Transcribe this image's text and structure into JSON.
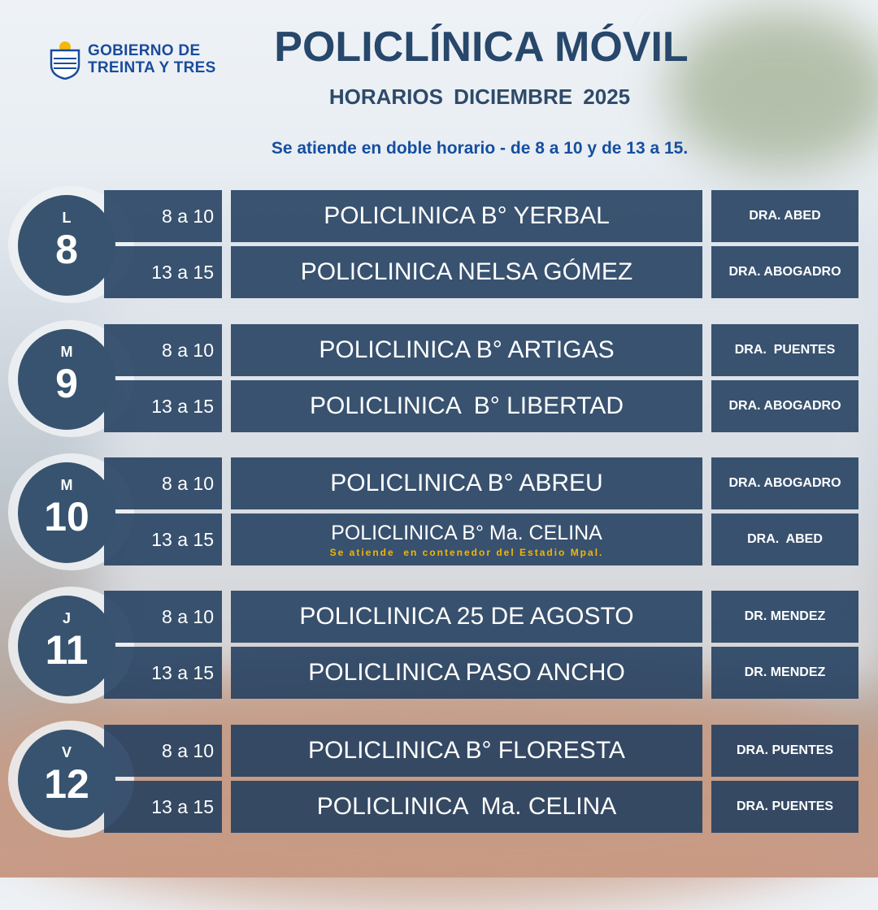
{
  "logo": {
    "line1": "GOBIERNO DE",
    "line2": "TREINTA Y TRES"
  },
  "title": "POLICLÍNICA MÓVIL",
  "subtitle": "HORARIOS  DICIEMBRE 2025",
  "note": "Se atiende en doble horario - de 8 a 10 y de 13 a 15.",
  "colors": {
    "panel": "#213d5f",
    "circle": "#37536f",
    "title": "#27476b",
    "note": "#164fa0",
    "highlight": "#f2b705"
  },
  "days": [
    {
      "letter": "L",
      "number": "8",
      "rows": [
        {
          "time": "8 a 10",
          "place": "POLICLINICA B° YERBAL",
          "doctor": "DRA. ABED"
        },
        {
          "time": "13 a 15",
          "place": "POLICLINICA NELSA GÓMEZ",
          "doctor": "DRA. ABOGADRO"
        }
      ]
    },
    {
      "letter": "M",
      "number": "9",
      "rows": [
        {
          "time": "8 a 10",
          "place": "POLICLINICA B° ARTIGAS",
          "doctor": "DRA.  PUENTES"
        },
        {
          "time": "13 a 15",
          "place": "POLICLINICA  B° LIBERTAD",
          "doctor": "DRA. ABOGADRO"
        }
      ]
    },
    {
      "letter": "M",
      "number": "10",
      "rows": [
        {
          "time": "8 a 10",
          "place": "POLICLINICA B° ABREU",
          "doctor": "DRA. ABOGADRO"
        },
        {
          "time": "13 a 15",
          "place": "POLICLINICA B° Ma. CELINA",
          "note": "Se atiende  en contenedor del Estadio Mpal.",
          "doctor": "DRA.  ABED"
        }
      ]
    },
    {
      "letter": "J",
      "number": "11",
      "rows": [
        {
          "time": "8 a 10",
          "place": "POLICLINICA 25 DE AGOSTO",
          "doctor": "DR. MENDEZ"
        },
        {
          "time": "13 a 15",
          "place": "POLICLINICA PASO ANCHO",
          "doctor": "DR. MENDEZ"
        }
      ]
    },
    {
      "letter": "V",
      "number": "12",
      "rows": [
        {
          "time": "8 a 10",
          "place": "POLICLINICA B° FLORESTA",
          "doctor": "DRA. PUENTES"
        },
        {
          "time": "13 a 15",
          "place": "POLICLINICA  Ma. CELINA",
          "doctor": "DRA. PUENTES"
        }
      ]
    }
  ]
}
